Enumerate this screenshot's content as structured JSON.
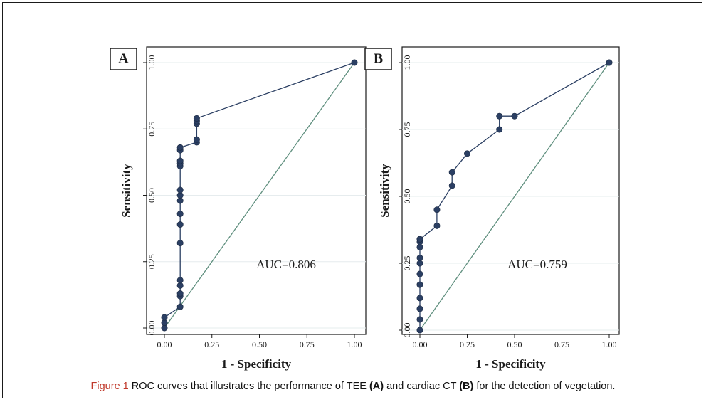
{
  "chart_data": [
    {
      "type": "line",
      "panel_label": "A",
      "xlabel": "1 - Specificity",
      "ylabel": "Sensitivity",
      "xlim": [
        0,
        1
      ],
      "ylim": [
        0,
        1
      ],
      "x_ticks": [
        "0.00",
        "0.25",
        "0.50",
        "0.75",
        "1.00"
      ],
      "y_ticks": [
        "0.00",
        "0.25",
        "0.50",
        "0.75",
        "1.00"
      ],
      "grid": true,
      "annotation": "AUC=0.806",
      "series": [
        {
          "color": "#2b3f63",
          "x": [
            0.0,
            0.0,
            0.0,
            0.083,
            0.083,
            0.083,
            0.083,
            0.083,
            0.083,
            0.083,
            0.083,
            0.083,
            0.083,
            0.083,
            0.083,
            0.083,
            0.083,
            0.083,
            0.083,
            0.17,
            0.17,
            0.17,
            0.17,
            0.17,
            1.0
          ],
          "y": [
            0.0,
            0.02,
            0.04,
            0.08,
            0.12,
            0.13,
            0.16,
            0.18,
            0.32,
            0.39,
            0.43,
            0.48,
            0.5,
            0.52,
            0.61,
            0.62,
            0.63,
            0.67,
            0.68,
            0.7,
            0.71,
            0.77,
            0.78,
            0.79,
            1.0
          ]
        }
      ],
      "reference_line": {
        "x": [
          0,
          1
        ],
        "y": [
          0,
          1
        ],
        "color": "#5f8f7e"
      }
    },
    {
      "type": "line",
      "panel_label": "B",
      "xlabel": "1 - Specificity",
      "ylabel": "Sensitivity",
      "xlim": [
        0,
        1
      ],
      "ylim": [
        0,
        1
      ],
      "x_ticks": [
        "0.00",
        "0.25",
        "0.50",
        "0.75",
        "1.00"
      ],
      "y_ticks": [
        "0.00",
        "0.25",
        "0.50",
        "0.75",
        "1.00"
      ],
      "grid": true,
      "annotation": "AUC=0.759",
      "series": [
        {
          "color": "#2b3f63",
          "x": [
            0.0,
            0.0,
            0.0,
            0.0,
            0.0,
            0.0,
            0.0,
            0.0,
            0.0,
            0.0,
            0.0,
            0.0,
            0.09,
            0.09,
            0.17,
            0.17,
            0.25,
            0.42,
            0.42,
            0.5,
            1.0
          ],
          "y": [
            0.0,
            0.04,
            0.08,
            0.12,
            0.17,
            0.21,
            0.25,
            0.27,
            0.31,
            0.33,
            0.34,
            0.34,
            0.39,
            0.45,
            0.54,
            0.59,
            0.66,
            0.75,
            0.8,
            0.8,
            1.0
          ]
        }
      ],
      "reference_line": {
        "x": [
          0,
          1
        ],
        "y": [
          0,
          1
        ],
        "color": "#5f8f7e"
      }
    }
  ],
  "caption": {
    "label": "Figure 1",
    "text_1": " ROC curves that illustrates the performance of TEE ",
    "bold_a": "(A)",
    "text_2": " and cardiac CT ",
    "bold_b": "(B)",
    "text_3": " for the detection of vegetation."
  },
  "colors": {
    "curve": "#2b3f63",
    "reference": "#5f8f7e",
    "grid": "#e6ecee",
    "caption_label": "#c0392b"
  }
}
